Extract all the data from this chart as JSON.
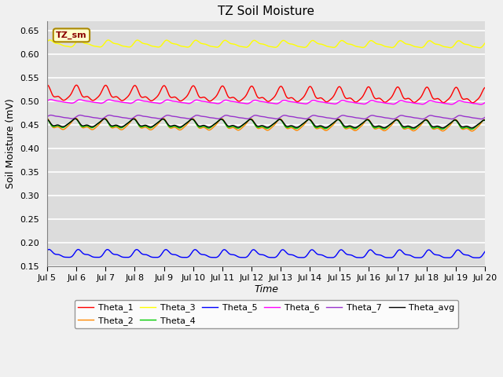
{
  "title": "TZ Soil Moisture",
  "xlabel": "Time",
  "ylabel": "Soil Moisture (mV)",
  "ylim": [
    0.15,
    0.67
  ],
  "xlim": [
    0,
    360
  ],
  "background_color": "#dcdcdc",
  "fig_color": "#f0f0f0",
  "legend_label": "TZ_sm",
  "x_tick_labels": [
    "Jul 5",
    "Jul 6",
    "Jul 7",
    "Jul 8",
    "Jul 9",
    "Jul 10",
    "Jul 11",
    "Jul 12",
    "Jul 13",
    "Jul 14",
    "Jul 15",
    "Jul 16",
    "Jul 17",
    "Jul 18",
    "Jul 19",
    "Jul 20"
  ],
  "series": [
    {
      "name": "Theta_1",
      "color": "#ff0000",
      "mean": 0.515,
      "amplitude": 0.013,
      "trend": -1.5e-05,
      "phase": 1.5
    },
    {
      "name": "Theta_2",
      "color": "#ff8800",
      "mean": 0.45,
      "amplitude": 0.01,
      "trend": -1e-05,
      "phase": 1.8
    },
    {
      "name": "Theta_3",
      "color": "#ffff00",
      "mean": 0.622,
      "amplitude": 0.006,
      "trend": -5e-06,
      "phase": 0.5
    },
    {
      "name": "Theta_4",
      "color": "#00cc00",
      "mean": 0.452,
      "amplitude": 0.008,
      "trend": -1e-05,
      "phase": 2.0
    },
    {
      "name": "Theta_5",
      "color": "#0000ff",
      "mean": 0.175,
      "amplitude": 0.007,
      "trend": -3e-06,
      "phase": 0.8
    },
    {
      "name": "Theta_6",
      "color": "#ff00ff",
      "mean": 0.5,
      "amplitude": 0.003,
      "trend": -8e-06,
      "phase": 0.2
    },
    {
      "name": "Theta_7",
      "color": "#9933cc",
      "mean": 0.467,
      "amplitude": 0.003,
      "trend": -2e-06,
      "phase": 0.1
    },
    {
      "name": "Theta_avg",
      "color": "#000000",
      "mean": 0.453,
      "amplitude": 0.007,
      "trend": -8e-06,
      "phase": 1.9
    }
  ]
}
